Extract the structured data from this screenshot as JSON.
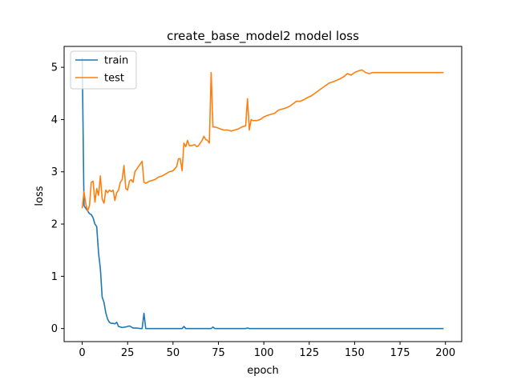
{
  "chart_data": {
    "type": "line",
    "title": "create_base_model2 model loss",
    "xlabel": "epoch",
    "ylabel": "loss",
    "xlim": [
      -9.95,
      208.95
    ],
    "ylim": [
      -0.25,
      5.4
    ],
    "xticks": [
      0,
      25,
      50,
      75,
      100,
      125,
      150,
      175,
      200
    ],
    "yticks": [
      0,
      1,
      2,
      3,
      4,
      5
    ],
    "grid": false,
    "legend": "top-left",
    "series": [
      {
        "name": "train",
        "color": "#1f77b4",
        "x": [
          0,
          1,
          2,
          3,
          4,
          5,
          6,
          7,
          8,
          9,
          10,
          11,
          12,
          13,
          14,
          15,
          16,
          17,
          18,
          19,
          20,
          22,
          24,
          26,
          28,
          30,
          32,
          33,
          34,
          35,
          40,
          50,
          55,
          56,
          57,
          60,
          70,
          71,
          72,
          73,
          80,
          90,
          91,
          92,
          100,
          120,
          140,
          160,
          180,
          199
        ],
        "y": [
          5.18,
          2.35,
          2.3,
          2.25,
          2.2,
          2.18,
          2.12,
          2.0,
          1.95,
          1.45,
          1.15,
          0.6,
          0.5,
          0.3,
          0.18,
          0.12,
          0.1,
          0.1,
          0.09,
          0.12,
          0.04,
          0.02,
          0.03,
          0.05,
          0.01,
          0.01,
          0.0,
          0.0,
          0.29,
          0.0,
          0.0,
          0.0,
          0.0,
          0.04,
          0.0,
          0.0,
          0.0,
          0.0,
          0.03,
          0.0,
          0.0,
          0.0,
          0.01,
          0.0,
          0.0,
          0.0,
          0.0,
          0.0,
          0.0,
          0.0
        ]
      },
      {
        "name": "test",
        "color": "#ff7f0e",
        "x": [
          0,
          1,
          2,
          3,
          4,
          5,
          6,
          7,
          8,
          9,
          10,
          11,
          12,
          13,
          14,
          15,
          16,
          17,
          18,
          19,
          20,
          21,
          22,
          23,
          24,
          25,
          26,
          27,
          28,
          29,
          30,
          31,
          32,
          33,
          34,
          35,
          37,
          40,
          42,
          44,
          46,
          48,
          50,
          52,
          53,
          54,
          55,
          56,
          57,
          58,
          59,
          60,
          62,
          63,
          64,
          66,
          67,
          68,
          69,
          70,
          71,
          72,
          74,
          76,
          78,
          80,
          82,
          84,
          86,
          88,
          90,
          91,
          92,
          93,
          94,
          96,
          98,
          100,
          102,
          104,
          106,
          108,
          110,
          112,
          114,
          116,
          118,
          120,
          122,
          124,
          126,
          128,
          130,
          132,
          134,
          136,
          138,
          140,
          142,
          144,
          146,
          148,
          150,
          152,
          154,
          156,
          158,
          160,
          162,
          165,
          170,
          180,
          190,
          199
        ],
        "y": [
          2.3,
          2.62,
          2.38,
          2.25,
          2.35,
          2.8,
          2.82,
          2.42,
          2.68,
          2.55,
          2.92,
          2.48,
          2.4,
          2.65,
          2.6,
          2.65,
          2.62,
          2.65,
          2.45,
          2.6,
          2.65,
          2.8,
          2.85,
          3.12,
          2.68,
          2.65,
          2.82,
          2.85,
          2.8,
          3.0,
          3.05,
          3.1,
          3.15,
          3.2,
          2.8,
          2.78,
          2.82,
          2.85,
          2.9,
          2.92,
          2.96,
          3.0,
          3.02,
          3.1,
          3.25,
          3.25,
          3.02,
          3.55,
          3.48,
          3.6,
          3.5,
          3.5,
          3.52,
          3.48,
          3.5,
          3.6,
          3.68,
          3.62,
          3.6,
          3.55,
          4.9,
          3.86,
          3.85,
          3.82,
          3.8,
          3.8,
          3.78,
          3.8,
          3.82,
          3.86,
          3.88,
          4.4,
          3.8,
          4.0,
          3.98,
          3.98,
          4.0,
          4.05,
          4.08,
          4.1,
          4.12,
          4.18,
          4.2,
          4.22,
          4.25,
          4.3,
          4.35,
          4.35,
          4.38,
          4.42,
          4.45,
          4.5,
          4.55,
          4.6,
          4.65,
          4.7,
          4.72,
          4.75,
          4.78,
          4.82,
          4.88,
          4.85,
          4.9,
          4.93,
          4.95,
          4.9,
          4.88,
          4.9,
          4.9,
          4.9,
          4.9,
          4.9,
          4.9,
          4.9
        ]
      }
    ]
  }
}
